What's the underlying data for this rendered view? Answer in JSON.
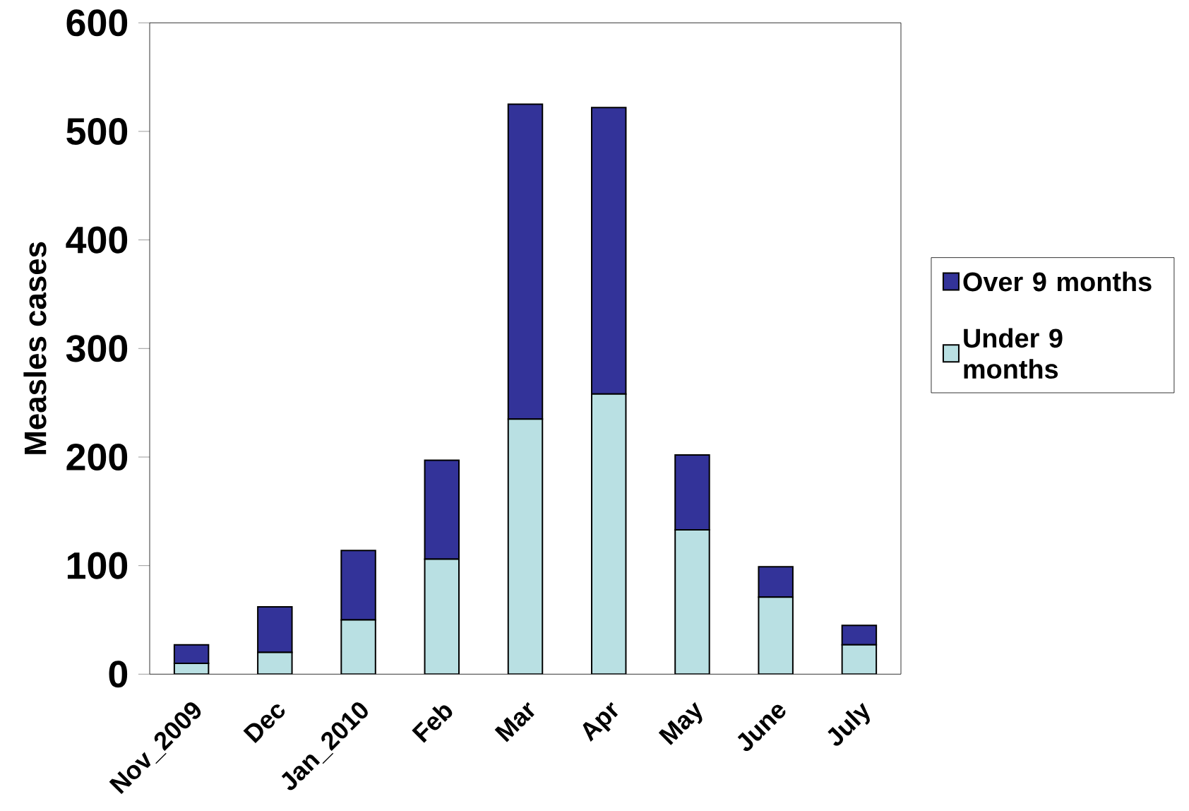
{
  "chart_data": {
    "type": "bar",
    "stacked": true,
    "ylabel": "Measles cases",
    "categories": [
      "Nov_2009",
      "Dec",
      "Jan_2010",
      "Feb",
      "Mar",
      "Apr",
      "May",
      "June",
      "July"
    ],
    "series": [
      {
        "name": "Under 9 months",
        "color": "#b9e0e3",
        "values": [
          10,
          20,
          50,
          106,
          235,
          258,
          133,
          71,
          27
        ]
      },
      {
        "name": "Over 9 months",
        "color": "#333399",
        "values": [
          17,
          42,
          64,
          91,
          290,
          264,
          69,
          28,
          18
        ]
      }
    ],
    "ylim": [
      0,
      600
    ],
    "yticks": [
      0,
      100,
      200,
      300,
      400,
      500,
      600
    ],
    "legend": "right",
    "grid": false
  }
}
